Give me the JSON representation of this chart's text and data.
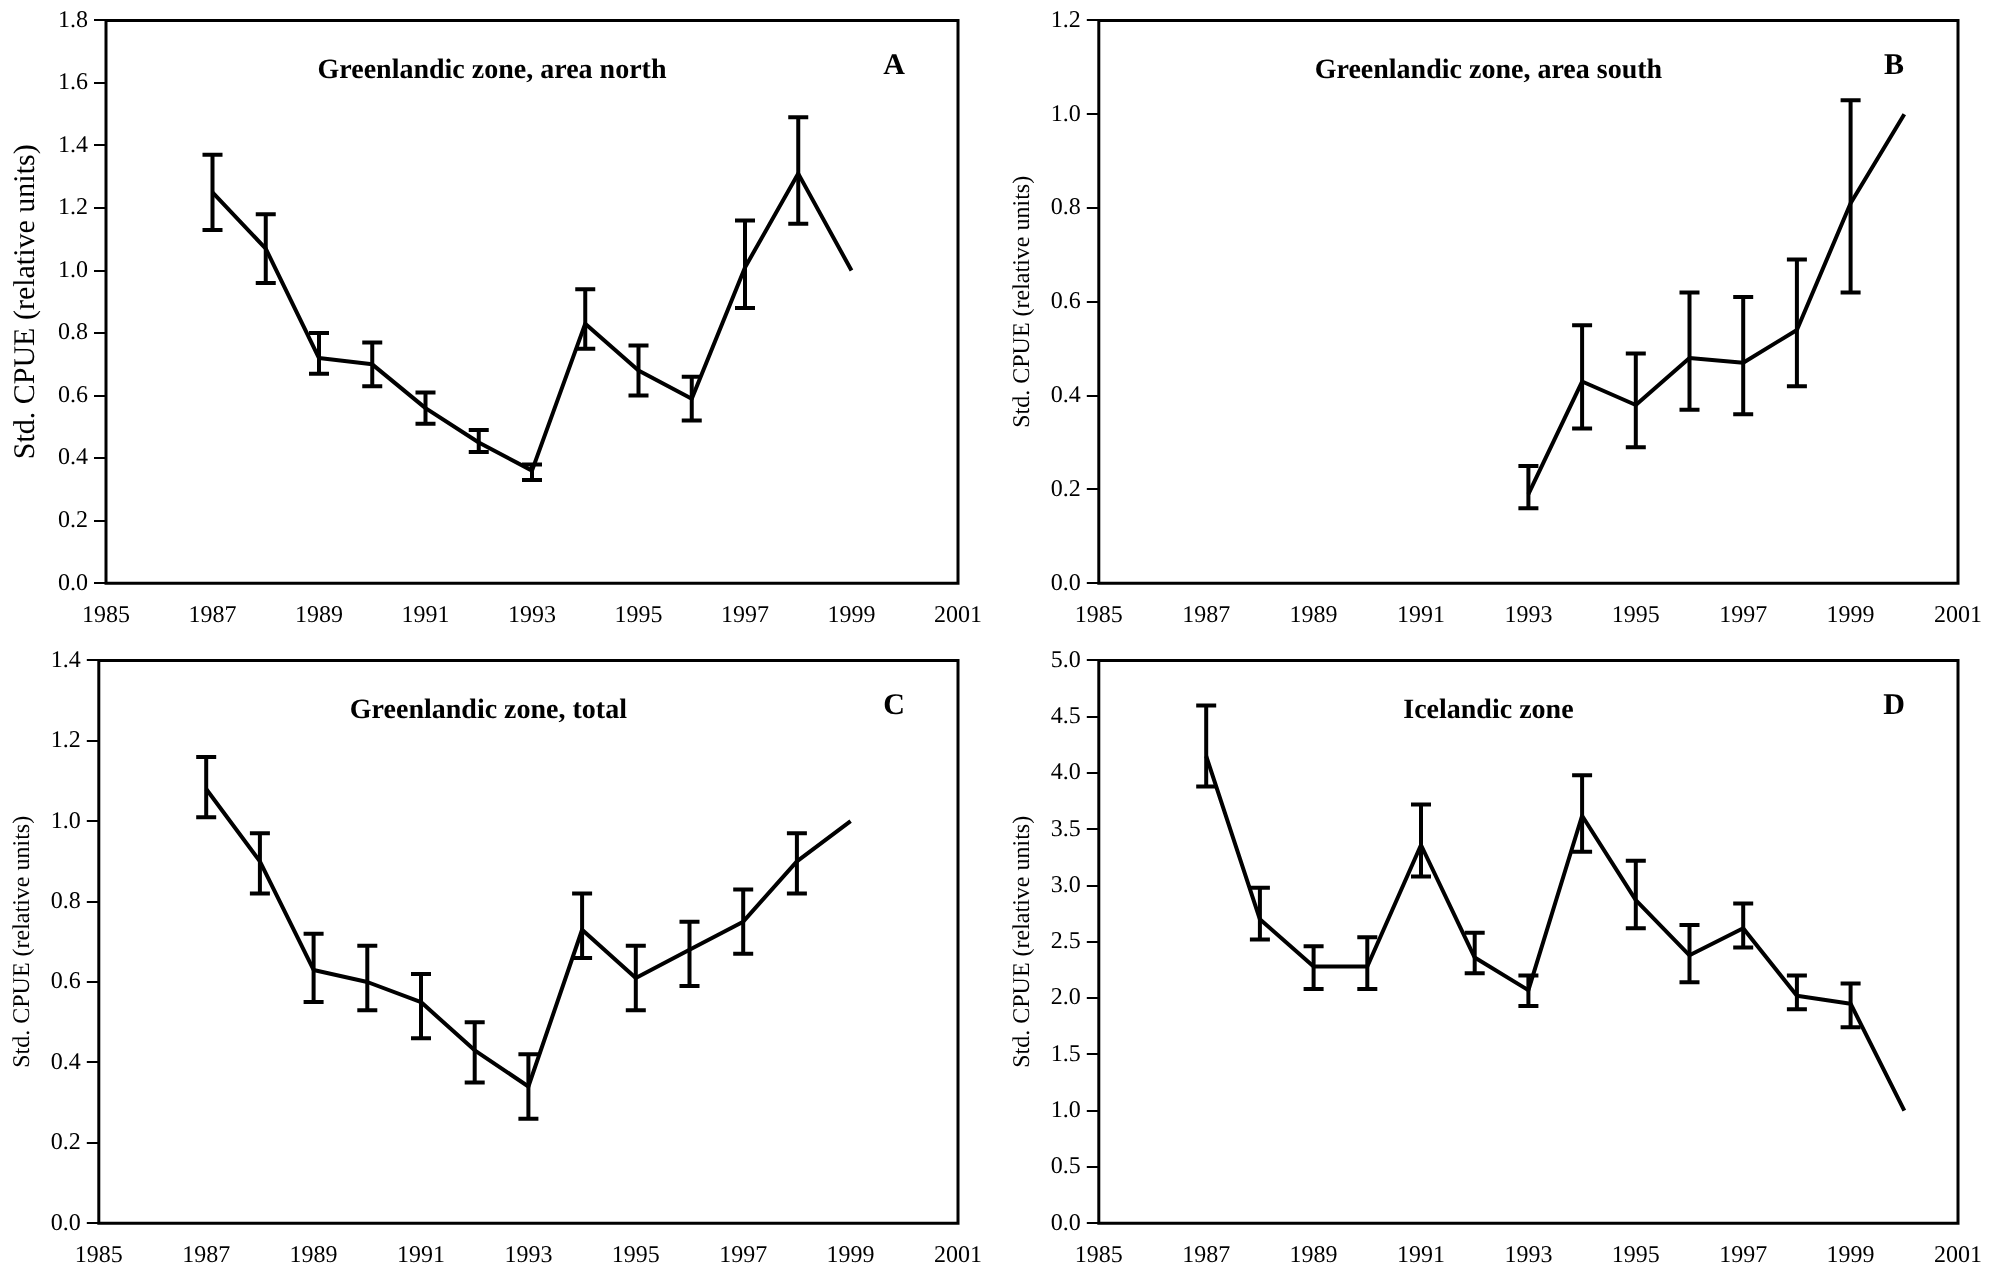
{
  "chart_data": [
    {
      "type": "line",
      "title": "Greenlandic zone, area north",
      "annotations": [
        "A"
      ],
      "ylabel": "Std. CPUE (relative units)",
      "x": [
        1987,
        1988,
        1989,
        1990,
        1991,
        1992,
        1993,
        1994,
        1995,
        1996,
        1997,
        1998,
        1999
      ],
      "series": [
        {
          "color": "#000000",
          "values": [
            1.25,
            1.07,
            0.72,
            0.7,
            0.56,
            0.45,
            0.36,
            0.83,
            0.68,
            0.59,
            1.01,
            1.31,
            1.0
          ],
          "errors": [
            [
              1.13,
              1.37
            ],
            [
              0.96,
              1.18
            ],
            [
              0.67,
              0.8
            ],
            [
              0.63,
              0.77
            ],
            [
              0.51,
              0.61
            ],
            [
              0.42,
              0.49
            ],
            [
              0.33,
              0.38
            ],
            [
              0.75,
              0.94
            ],
            [
              0.6,
              0.76
            ],
            [
              0.52,
              0.66
            ],
            [
              0.88,
              1.16
            ],
            [
              1.15,
              1.49
            ],
            null
          ]
        }
      ],
      "xlim": [
        1985,
        2001
      ],
      "xticks": [
        1985,
        1987,
        1989,
        1991,
        1993,
        1995,
        1997,
        1999,
        2001
      ],
      "ylim": [
        0,
        1.8
      ],
      "yticks": [
        {
          "value": 0,
          "label": "0.0"
        },
        0.2,
        0.4,
        0.6,
        0.8,
        {
          "value": 1,
          "label": "1.0"
        },
        1.2,
        1.4,
        1.6,
        1.8
      ],
      "grid": false,
      "legend": false,
      "marker": "none"
    },
    {
      "type": "line",
      "title": "Greenlandic zone, area south",
      "annotations": [
        "B"
      ],
      "ylabel": "Std. CPUE (relative units)",
      "x": [
        1993,
        1994,
        1995,
        1996,
        1997,
        1998,
        1999,
        2000
      ],
      "series": [
        {
          "color": "#000000",
          "values": [
            0.19,
            0.43,
            0.38,
            0.48,
            0.47,
            0.54,
            0.81,
            1.0
          ],
          "errors": [
            [
              0.16,
              0.25
            ],
            [
              0.33,
              0.55
            ],
            [
              0.29,
              0.49
            ],
            [
              0.37,
              0.62
            ],
            [
              0.36,
              0.61
            ],
            [
              0.42,
              0.69
            ],
            [
              0.62,
              1.03
            ],
            null
          ]
        }
      ],
      "xlim": [
        1985,
        2001
      ],
      "xticks": [
        1985,
        1987,
        1989,
        1991,
        1993,
        1995,
        1997,
        1999,
        2001
      ],
      "ylim": [
        0,
        1.2
      ],
      "yticks": [
        {
          "value": 0,
          "label": "0.0"
        },
        0.2,
        0.4,
        0.6,
        0.8,
        {
          "value": 1,
          "label": "1.0"
        },
        1.2
      ],
      "grid": false,
      "legend": false,
      "marker": "none"
    },
    {
      "type": "line",
      "title": "Greenlandic zone, total",
      "annotations": [
        "C"
      ],
      "ylabel": "Std. CPUE (relative units)",
      "x": [
        1987,
        1988,
        1989,
        1990,
        1991,
        1992,
        1993,
        1994,
        1995,
        1996,
        1997,
        1998,
        1999
      ],
      "series": [
        {
          "color": "#000000",
          "values": [
            1.08,
            0.9,
            0.63,
            0.6,
            0.55,
            0.43,
            0.34,
            0.73,
            0.61,
            0.68,
            0.75,
            0.9,
            1.0
          ],
          "errors": [
            [
              1.01,
              1.16
            ],
            [
              0.82,
              0.97
            ],
            [
              0.55,
              0.72
            ],
            [
              0.53,
              0.69
            ],
            [
              0.46,
              0.62
            ],
            [
              0.35,
              0.5
            ],
            [
              0.26,
              0.42
            ],
            [
              0.66,
              0.82
            ],
            [
              0.53,
              0.69
            ],
            [
              0.59,
              0.75
            ],
            [
              0.67,
              0.83
            ],
            [
              0.82,
              0.97
            ],
            null
          ]
        }
      ],
      "xlim": [
        1985,
        2001
      ],
      "xticks": [
        1985,
        1987,
        1989,
        1991,
        1993,
        1995,
        1997,
        1999,
        2001
      ],
      "ylim": [
        0,
        1.4
      ],
      "yticks": [
        {
          "value": 0,
          "label": "0.0"
        },
        0.2,
        0.4,
        0.6,
        0.8,
        {
          "value": 1,
          "label": "1.0"
        },
        1.2,
        1.4
      ],
      "grid": false,
      "legend": false,
      "marker": "none"
    },
    {
      "type": "line",
      "title": "Icelandic zone",
      "annotations": [
        "D"
      ],
      "ylabel": "Std. CPUE (relative units)",
      "x": [
        1987,
        1988,
        1989,
        1990,
        1991,
        1992,
        1993,
        1994,
        1995,
        1996,
        1997,
        1998,
        1999,
        2000
      ],
      "series": [
        {
          "color": "#000000",
          "values": [
            4.15,
            2.7,
            2.28,
            2.28,
            3.36,
            2.36,
            2.07,
            3.62,
            2.87,
            2.38,
            2.62,
            2.02,
            1.95,
            1.0
          ],
          "errors": [
            [
              3.88,
              4.6
            ],
            [
              2.52,
              2.98
            ],
            [
              2.08,
              2.46
            ],
            [
              2.08,
              2.54
            ],
            [
              3.08,
              3.72
            ],
            [
              2.22,
              2.58
            ],
            [
              1.93,
              2.2
            ],
            [
              3.3,
              3.98
            ],
            [
              2.62,
              3.22
            ],
            [
              2.14,
              2.65
            ],
            [
              2.45,
              2.84
            ],
            [
              1.9,
              2.2
            ],
            [
              1.74,
              2.13
            ],
            null
          ]
        }
      ],
      "xlim": [
        1985,
        2001
      ],
      "xticks": [
        1985,
        1987,
        1989,
        1991,
        1993,
        1995,
        1997,
        1999,
        2001
      ],
      "ylim": [
        0,
        5
      ],
      "yticks": [
        {
          "value": 0,
          "label": "0.0"
        },
        0.5,
        {
          "value": 1,
          "label": "1.0"
        },
        1.5,
        {
          "value": 2,
          "label": "2.0"
        },
        2.5,
        {
          "value": 3,
          "label": "3.0"
        },
        3.5,
        {
          "value": 4,
          "label": "4.0"
        },
        4.5,
        {
          "value": 5,
          "label": "5.0"
        }
      ],
      "grid": false,
      "legend": false,
      "marker": "none"
    }
  ]
}
